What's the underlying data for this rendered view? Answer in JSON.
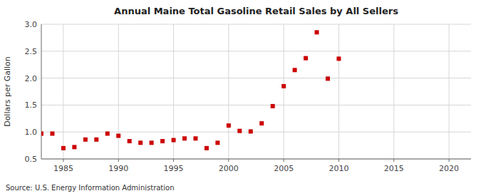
{
  "chart_data": {
    "type": "scatter",
    "title": "Annual Maine Total Gasoline Retail Sales by All Sellers",
    "y_label": "Dollars per Gallon",
    "source": "Source: U.S. Energy Information Administration",
    "x": [
      1983,
      1984,
      1985,
      1986,
      1987,
      1988,
      1989,
      1990,
      1991,
      1992,
      1993,
      1994,
      1995,
      1996,
      1997,
      1998,
      1999,
      2000,
      2001,
      2002,
      2003,
      2004,
      2005,
      2006,
      2007,
      2008,
      2009,
      2010
    ],
    "values": [
      0.97,
      0.97,
      0.7,
      0.72,
      0.86,
      0.86,
      0.97,
      0.93,
      0.83,
      0.8,
      0.8,
      0.83,
      0.85,
      0.88,
      0.88,
      0.7,
      0.8,
      1.12,
      1.02,
      1.01,
      1.16,
      1.48,
      1.85,
      2.15,
      2.37,
      2.85,
      1.99,
      2.36
    ],
    "color": "#cc0000",
    "marker": "square",
    "xlim": [
      1983,
      2022
    ],
    "ylim": [
      0.5,
      3.0
    ],
    "xticks": [
      1985,
      1990,
      1995,
      2000,
      2005,
      2010,
      2015,
      2020
    ],
    "yticks": [
      0.5,
      {
        "value": 1.0,
        "label": "1.0"
      },
      1.5,
      {
        "value": 2.0,
        "label": "2.0"
      },
      2.5,
      {
        "value": 3.0,
        "label": "3.0"
      }
    ],
    "grid": true
  }
}
